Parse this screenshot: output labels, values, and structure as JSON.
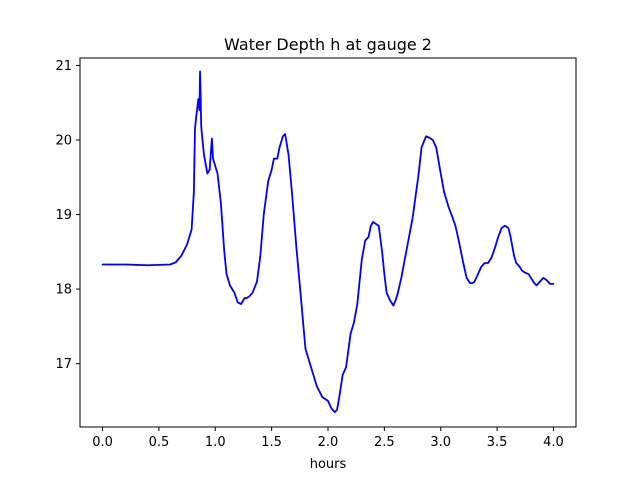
{
  "chart_data": {
    "type": "line",
    "title": "Water Depth h at gauge 2",
    "xlabel": "hours",
    "ylabel": "",
    "xlim": [
      -0.2,
      4.2
    ],
    "ylim": [
      16.15,
      21.1
    ],
    "xticks": [
      0.0,
      0.5,
      1.0,
      1.5,
      2.0,
      2.5,
      3.0,
      3.5,
      4.0
    ],
    "xtick_labels": [
      "0.0",
      "0.5",
      "1.0",
      "1.5",
      "2.0",
      "2.5",
      "3.0",
      "3.5",
      "4.0"
    ],
    "yticks": [
      17,
      18,
      19,
      20,
      21
    ],
    "ytick_labels": [
      "17",
      "18",
      "19",
      "20",
      "21"
    ],
    "grid": false,
    "series": [
      {
        "color": "#0000ff",
        "x": [
          0.0,
          0.2,
          0.4,
          0.6,
          0.65,
          0.7,
          0.75,
          0.79,
          0.81,
          0.82,
          0.83,
          0.85,
          0.86,
          0.865,
          0.87,
          0.875,
          0.88,
          0.9,
          0.93,
          0.95,
          0.97,
          0.98,
          1.0,
          1.02,
          1.05,
          1.08,
          1.1,
          1.13,
          1.17,
          1.2,
          1.23,
          1.26,
          1.28,
          1.3,
          1.33,
          1.37,
          1.4,
          1.43,
          1.47,
          1.5,
          1.52,
          1.55,
          1.57,
          1.6,
          1.62,
          1.65,
          1.68,
          1.72,
          1.75,
          1.8,
          1.85,
          1.9,
          1.95,
          2.0,
          2.03,
          2.06,
          2.08,
          2.1,
          2.13,
          2.16,
          2.2,
          2.23,
          2.26,
          2.3,
          2.33,
          2.36,
          2.38,
          2.4,
          2.42,
          2.45,
          2.48,
          2.5,
          2.52,
          2.55,
          2.58,
          2.6,
          2.62,
          2.65,
          2.7,
          2.75,
          2.8,
          2.83,
          2.87,
          2.9,
          2.93,
          2.96,
          3.0,
          3.03,
          3.07,
          3.1,
          3.13,
          3.16,
          3.2,
          3.23,
          3.26,
          3.28,
          3.3,
          3.33,
          3.36,
          3.39,
          3.42,
          3.45,
          3.48,
          3.51,
          3.54,
          3.57,
          3.6,
          3.62,
          3.65,
          3.67,
          3.7,
          3.72,
          3.75,
          3.78,
          3.8,
          3.83,
          3.85,
          3.88,
          3.91,
          3.94,
          3.97,
          4.0
        ],
        "y": [
          18.33,
          18.33,
          18.32,
          18.33,
          18.36,
          18.45,
          18.6,
          18.8,
          19.3,
          20.15,
          20.3,
          20.55,
          20.4,
          20.92,
          20.6,
          20.2,
          20.1,
          19.8,
          19.55,
          19.6,
          20.02,
          19.75,
          19.65,
          19.55,
          19.15,
          18.5,
          18.2,
          18.05,
          17.95,
          17.82,
          17.8,
          17.88,
          17.88,
          17.9,
          17.95,
          18.1,
          18.45,
          19.0,
          19.45,
          19.6,
          19.75,
          19.75,
          19.9,
          20.05,
          20.08,
          19.8,
          19.3,
          18.55,
          18.05,
          17.2,
          16.95,
          16.7,
          16.55,
          16.5,
          16.4,
          16.35,
          16.38,
          16.55,
          16.85,
          16.95,
          17.4,
          17.55,
          17.8,
          18.4,
          18.65,
          18.7,
          18.85,
          18.9,
          18.88,
          18.85,
          18.5,
          18.2,
          17.95,
          17.85,
          17.78,
          17.85,
          17.95,
          18.15,
          18.55,
          18.95,
          19.5,
          19.9,
          20.05,
          20.03,
          20.0,
          19.9,
          19.55,
          19.3,
          19.1,
          18.98,
          18.85,
          18.65,
          18.35,
          18.15,
          18.08,
          18.08,
          18.1,
          18.2,
          18.3,
          18.35,
          18.35,
          18.42,
          18.55,
          18.7,
          18.82,
          18.85,
          18.82,
          18.7,
          18.45,
          18.35,
          18.3,
          18.25,
          18.22,
          18.2,
          18.15,
          18.08,
          18.05,
          18.1,
          18.15,
          18.12,
          18.07,
          18.07
        ]
      }
    ]
  }
}
